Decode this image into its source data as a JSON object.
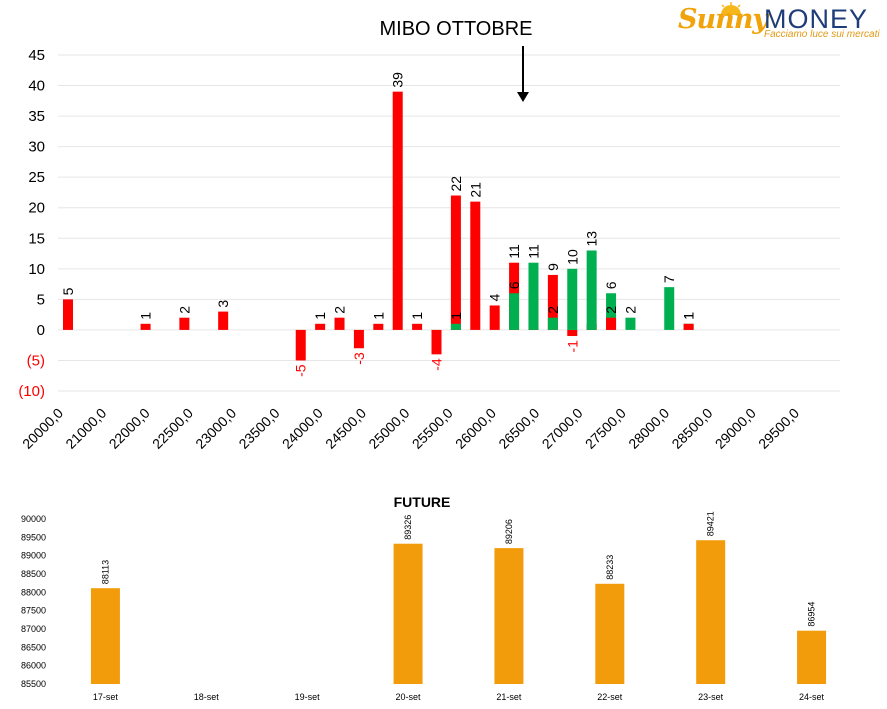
{
  "logo": {
    "brand_left": "Sunny",
    "brand_right": "MONEY",
    "tagline": "Facciamo luce sui mercati",
    "colors": {
      "sunny": "#f0a30a",
      "money": "#1f3e79"
    }
  },
  "chart_data": [
    {
      "type": "bar",
      "title": "MIBO OTTOBRE",
      "annotation": "downward arrow",
      "ylim": [
        -10,
        45
      ],
      "yticks": [
        {
          "value": 45,
          "label": "45"
        },
        {
          "value": 40,
          "label": "40"
        },
        {
          "value": 35,
          "label": "35"
        },
        {
          "value": 30,
          "label": "30"
        },
        {
          "value": 25,
          "label": "25"
        },
        {
          "value": 20,
          "label": "20"
        },
        {
          "value": 15,
          "label": "15"
        },
        {
          "value": 10,
          "label": "10"
        },
        {
          "value": 5,
          "label": "5"
        },
        {
          "value": 0,
          "label": "0"
        },
        {
          "value": -5,
          "label": "(5)"
        },
        {
          "value": -10,
          "label": "(10)"
        }
      ],
      "x_labels": [
        "20000,0",
        "21000,0",
        "22000,0",
        "22500,0",
        "23000,0",
        "23500,0",
        "24000,0",
        "24500,0",
        "25000,0",
        "25500,0",
        "26000,0",
        "26500,0",
        "27000,0",
        "27500,0",
        "28000,0",
        "28500,0",
        "29000,0",
        "29500,0"
      ],
      "grid": true,
      "colors": {
        "red": "#ff0000",
        "green": "#00b050",
        "negative_label": "#ff0000"
      },
      "bars": [
        {
          "strike": "20000,0",
          "series": "red",
          "value": 5
        },
        {
          "strike": "21000,0",
          "series": "red",
          "value": 1
        },
        {
          "strike": "21500,0",
          "series": "red",
          "value": 2
        },
        {
          "strike": "22000,0",
          "series": "red",
          "value": 3
        },
        {
          "strike": "23000,0",
          "series": "red",
          "value": -5
        },
        {
          "strike": "23250,0",
          "series": "red",
          "value": 1
        },
        {
          "strike": "23500,0",
          "series": "red",
          "value": 2
        },
        {
          "strike": "23750,0",
          "series": "red",
          "value": -3
        },
        {
          "strike": "24000,0",
          "series": "red",
          "value": 1
        },
        {
          "strike": "24250,0",
          "series": "red",
          "value": 39
        },
        {
          "strike": "24500,0",
          "series": "red",
          "value": 1
        },
        {
          "strike": "24750,0",
          "series": "red",
          "value": -4
        },
        {
          "strike": "25000,0",
          "series": "red",
          "value": 22
        },
        {
          "strike": "25000,0",
          "series": "green",
          "value": 1
        },
        {
          "strike": "25250,0",
          "series": "red",
          "value": 21
        },
        {
          "strike": "25500,0",
          "series": "red",
          "value": 4
        },
        {
          "strike": "25750,0",
          "series": "red",
          "value": 11
        },
        {
          "strike": "25750,0",
          "series": "green",
          "value": 6
        },
        {
          "strike": "26000,0",
          "series": "red",
          "value": 6
        },
        {
          "strike": "26000,0",
          "series": "green",
          "value": 11
        },
        {
          "strike": "26250,0",
          "series": "red",
          "value": 9
        },
        {
          "strike": "26250,0",
          "series": "green",
          "value": 2
        },
        {
          "strike": "26500,0",
          "series": "red",
          "value": -1
        },
        {
          "strike": "26500,0",
          "series": "green",
          "value": 10
        },
        {
          "strike": "26750,0",
          "series": "red",
          "value": 1
        },
        {
          "strike": "26750,0",
          "series": "green",
          "value": 13
        },
        {
          "strike": "27000,0",
          "series": "green",
          "value": 6
        },
        {
          "strike": "27000,0",
          "series": "red",
          "value": 2
        },
        {
          "strike": "27250,0",
          "series": "green",
          "value": 2
        },
        {
          "strike": "27750,0",
          "series": "green",
          "value": 7
        },
        {
          "strike": "28000,0",
          "series": "green",
          "value": 1
        },
        {
          "strike": "28000,0",
          "series": "red",
          "value": 1
        }
      ]
    },
    {
      "type": "bar",
      "title": "FUTURE",
      "ylim": [
        85500,
        90000
      ],
      "yticks": [
        90000,
        89500,
        89000,
        88500,
        88000,
        87500,
        87000,
        86500,
        86000,
        85500
      ],
      "categories": [
        "17-set",
        "18-set",
        "19-set",
        "20-set",
        "21-set",
        "22-set",
        "23-set",
        "24-set"
      ],
      "values": [
        88113,
        null,
        null,
        89326,
        89206,
        88233,
        89421,
        86954
      ],
      "color": "#f39c0b",
      "grid": false
    }
  ]
}
